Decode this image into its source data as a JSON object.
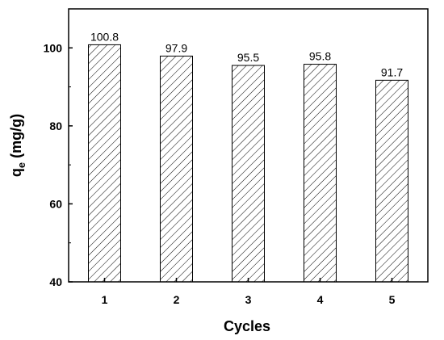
{
  "chart_data": {
    "type": "bar",
    "categories": [
      "1",
      "2",
      "3",
      "4",
      "5"
    ],
    "values": [
      100.8,
      97.9,
      95.5,
      95.8,
      91.7
    ],
    "data_labels": [
      "100.8",
      "97.9",
      "95.5",
      "95.8",
      "91.7"
    ],
    "title": "",
    "xlabel": "Cycles",
    "ylabel": "q",
    "ylabel_subscript": "e",
    "ylabel_suffix": " (mg/g)",
    "ylim": [
      40,
      110
    ],
    "yticks": [
      40,
      60,
      80,
      100
    ],
    "ytick_labels": [
      "40",
      "60",
      "80",
      "100"
    ],
    "grid": false,
    "legend": false,
    "bar_fill": "hatched",
    "colors": {
      "bar_stroke": "#000000",
      "hatch": "#000000",
      "axis": "#000000",
      "background": "#ffffff"
    }
  }
}
